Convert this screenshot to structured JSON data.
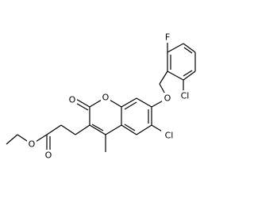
{
  "nodes": [
    {
      "label": "O"
    },
    {
      "label": "O"
    },
    {
      "label": "O"
    },
    {
      "label": "O"
    },
    {
      "label": "Cl"
    },
    {
      "label": "Cl"
    },
    {
      "label": "F"
    }
  ]
}
